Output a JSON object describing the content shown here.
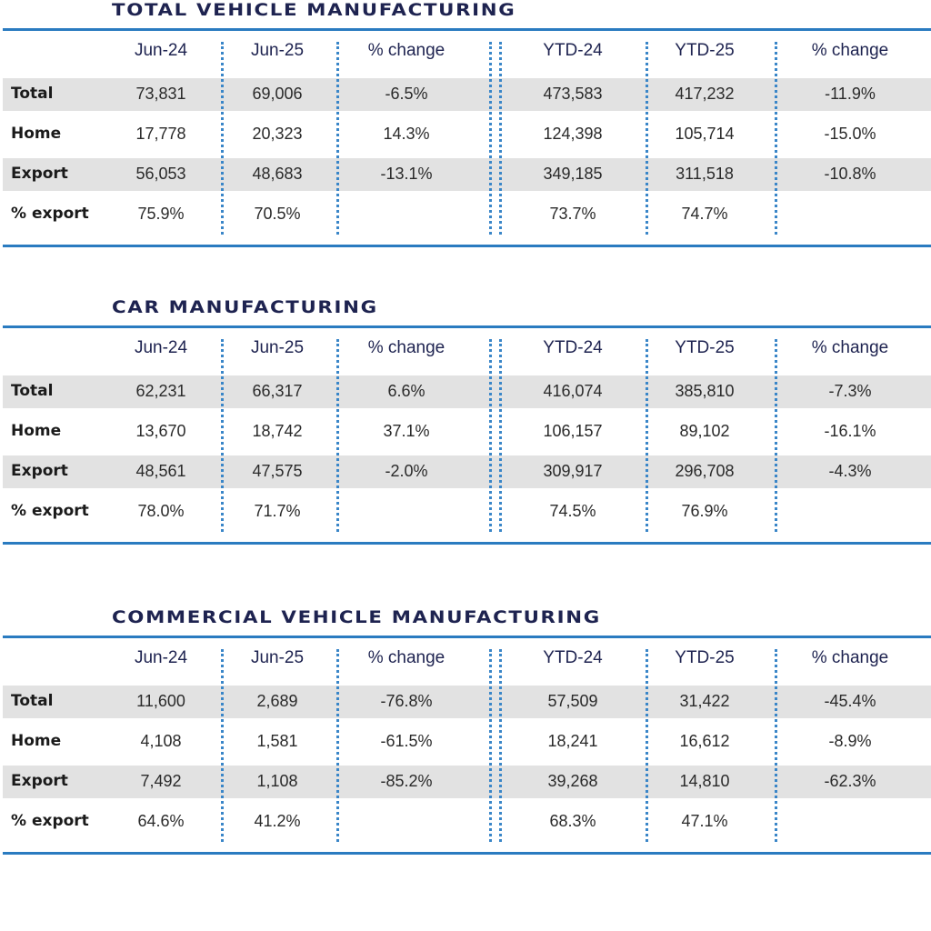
{
  "colors": {
    "title": "#1e2350",
    "rule": "#2a7bc0",
    "band": "#e2e2e2",
    "divider": "#3a86c8"
  },
  "columns": [
    "Jun-24",
    "Jun-25",
    "% change",
    "YTD-24",
    "YTD-25",
    "% change"
  ],
  "sections": [
    {
      "title": "TOTAL VEHICLE MANUFACTURING",
      "rows": [
        {
          "label": "Total",
          "values": [
            "73,831",
            "69,006",
            "-6.5%",
            "473,583",
            "417,232",
            "-11.9%"
          ]
        },
        {
          "label": "Home",
          "values": [
            "17,778",
            "20,323",
            "14.3%",
            "124,398",
            "105,714",
            "-15.0%"
          ]
        },
        {
          "label": "Export",
          "values": [
            "56,053",
            "48,683",
            "-13.1%",
            "349,185",
            "311,518",
            "-10.8%"
          ]
        },
        {
          "label": "% export",
          "values": [
            "75.9%",
            "70.5%",
            "",
            "73.7%",
            "74.7%",
            ""
          ]
        }
      ]
    },
    {
      "title": "CAR MANUFACTURING",
      "rows": [
        {
          "label": "Total",
          "values": [
            "62,231",
            "66,317",
            "6.6%",
            "416,074",
            "385,810",
            "-7.3%"
          ]
        },
        {
          "label": "Home",
          "values": [
            "13,670",
            "18,742",
            "37.1%",
            "106,157",
            "89,102",
            "-16.1%"
          ]
        },
        {
          "label": "Export",
          "values": [
            "48,561",
            "47,575",
            "-2.0%",
            "309,917",
            "296,708",
            "-4.3%"
          ]
        },
        {
          "label": "% export",
          "values": [
            "78.0%",
            "71.7%",
            "",
            "74.5%",
            "76.9%",
            ""
          ]
        }
      ]
    },
    {
      "title": "COMMERCIAL VEHICLE MANUFACTURING",
      "rows": [
        {
          "label": "Total",
          "values": [
            "11,600",
            "2,689",
            "-76.8%",
            "57,509",
            "31,422",
            "-45.4%"
          ]
        },
        {
          "label": "Home",
          "values": [
            "4,108",
            "1,581",
            "-61.5%",
            "18,241",
            "16,612",
            "-8.9%"
          ]
        },
        {
          "label": "Export",
          "values": [
            "7,492",
            "1,108",
            "-85.2%",
            "39,268",
            "14,810",
            "-62.3%"
          ]
        },
        {
          "label": "% export",
          "values": [
            "64.6%",
            "41.2%",
            "",
            "68.3%",
            "47.1%",
            ""
          ]
        }
      ]
    }
  ]
}
